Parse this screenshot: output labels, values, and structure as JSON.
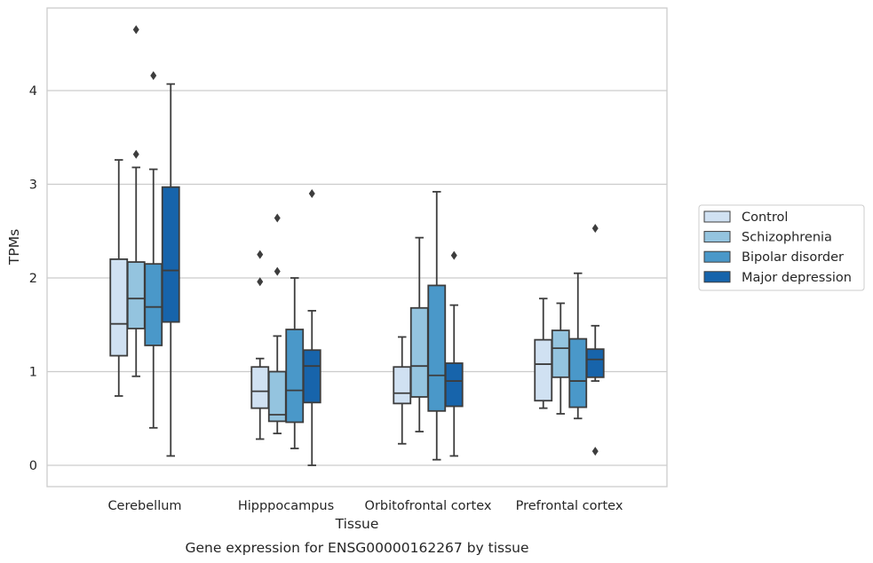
{
  "chart_data": {
    "type": "box",
    "title": "",
    "caption": "Gene expression for ENSG00000162267 by tissue",
    "xlabel": "Tissue",
    "ylabel": "TPMs",
    "ylim": [
      -0.22,
      4.9
    ],
    "yticks": [
      0,
      1,
      2,
      3,
      4
    ],
    "grid": true,
    "legend_position": "right",
    "categories": [
      "Cerebellum",
      "Hipppocampus",
      "Orbitofrontal cortex",
      "Prefrontal cortex"
    ],
    "series": [
      {
        "name": "Control",
        "color": "#d0e1f2",
        "boxes": [
          {
            "whisker_low": 0.74,
            "q1": 1.17,
            "median": 1.51,
            "q3": 2.2,
            "whisker_high": 3.26,
            "outliers": []
          },
          {
            "whisker_low": 0.28,
            "q1": 0.61,
            "median": 0.79,
            "q3": 1.05,
            "whisker_high": 1.14,
            "outliers": [
              1.96,
              2.25
            ]
          },
          {
            "whisker_low": 0.23,
            "q1": 0.66,
            "median": 0.77,
            "q3": 1.05,
            "whisker_high": 1.37,
            "outliers": []
          },
          {
            "whisker_low": 0.61,
            "q1": 0.69,
            "median": 1.08,
            "q3": 1.34,
            "whisker_high": 1.78,
            "outliers": []
          }
        ]
      },
      {
        "name": "Schizophrenia",
        "color": "#94c4df",
        "boxes": [
          {
            "whisker_low": 0.95,
            "q1": 1.46,
            "median": 1.78,
            "q3": 2.17,
            "whisker_high": 3.18,
            "outliers": [
              3.32,
              4.65
            ]
          },
          {
            "whisker_low": 0.34,
            "q1": 0.47,
            "median": 0.54,
            "q3": 1.0,
            "whisker_high": 1.38,
            "outliers": [
              2.07,
              2.64
            ]
          },
          {
            "whisker_low": 0.36,
            "q1": 0.73,
            "median": 1.06,
            "q3": 1.68,
            "whisker_high": 2.43,
            "outliers": []
          },
          {
            "whisker_low": 0.55,
            "q1": 0.94,
            "median": 1.25,
            "q3": 1.44,
            "whisker_high": 1.73,
            "outliers": []
          }
        ]
      },
      {
        "name": "Bipolar disorder",
        "color": "#4a98c9",
        "boxes": [
          {
            "whisker_low": 0.4,
            "q1": 1.28,
            "median": 1.69,
            "q3": 2.15,
            "whisker_high": 3.16,
            "outliers": [
              4.16
            ]
          },
          {
            "whisker_low": 0.18,
            "q1": 0.46,
            "median": 0.8,
            "q3": 1.45,
            "whisker_high": 2.0,
            "outliers": []
          },
          {
            "whisker_low": 0.06,
            "q1": 0.58,
            "median": 0.96,
            "q3": 1.92,
            "whisker_high": 2.92,
            "outliers": []
          },
          {
            "whisker_low": 0.5,
            "q1": 0.62,
            "median": 0.9,
            "q3": 1.35,
            "whisker_high": 2.05,
            "outliers": []
          }
        ]
      },
      {
        "name": "Major depression",
        "color": "#1764ab",
        "boxes": [
          {
            "whisker_low": 0.1,
            "q1": 1.53,
            "median": 2.08,
            "q3": 2.97,
            "whisker_high": 4.07,
            "outliers": []
          },
          {
            "whisker_low": 0.0,
            "q1": 0.67,
            "median": 1.06,
            "q3": 1.23,
            "whisker_high": 1.65,
            "outliers": [
              2.9
            ]
          },
          {
            "whisker_low": 0.1,
            "q1": 0.63,
            "median": 0.9,
            "q3": 1.09,
            "whisker_high": 1.71,
            "outliers": [
              2.24
            ]
          },
          {
            "whisker_low": 0.9,
            "q1": 0.94,
            "median": 1.13,
            "q3": 1.24,
            "whisker_high": 1.49,
            "outliers": [
              0.15,
              2.53
            ]
          }
        ]
      }
    ]
  }
}
